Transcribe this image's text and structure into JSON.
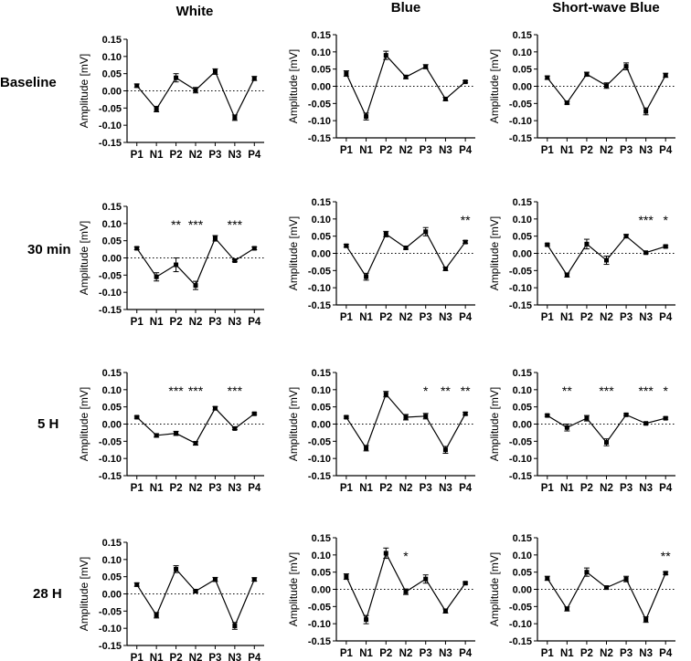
{
  "figure": {
    "columns": [
      "White",
      "Blue",
      "Short-wave Blue"
    ],
    "rows": [
      "Baseline",
      "30 min",
      "5 H",
      "28 H"
    ]
  },
  "chart_data": {
    "type": "line",
    "categories": [
      "P1",
      "N1",
      "P2",
      "N2",
      "P3",
      "N3",
      "P4"
    ],
    "ylabel": "Amplitude [mV]",
    "ylim": [
      -0.15,
      0.15
    ],
    "yticks": [
      "0.15",
      "0.10",
      "0.05",
      "0.00",
      "-0.05",
      "-0.10",
      "-0.15"
    ],
    "reference_line": {
      "y": 0,
      "style": "dotted"
    },
    "panels": [
      {
        "column": "White",
        "row": "Baseline",
        "values": [
          0.015,
          -0.053,
          0.038,
          0.002,
          0.056,
          -0.078,
          0.036
        ],
        "errors": [
          0.005,
          0.008,
          0.012,
          0.008,
          0.008,
          0.008,
          0.006
        ],
        "significance": [
          "",
          "",
          "",
          "",
          "",
          "",
          ""
        ]
      },
      {
        "column": "Blue",
        "row": "Baseline",
        "values": [
          0.037,
          -0.088,
          0.09,
          0.027,
          0.057,
          -0.037,
          0.013
        ],
        "errors": [
          0.008,
          0.01,
          0.012,
          0.005,
          0.006,
          0.005,
          0.003
        ],
        "significance": [
          "",
          "",
          "",
          "",
          "",
          "",
          ""
        ]
      },
      {
        "column": "Short-wave Blue",
        "row": "Baseline",
        "values": [
          0.025,
          -0.048,
          0.035,
          0.002,
          0.058,
          -0.073,
          0.032
        ],
        "errors": [
          0.005,
          0.004,
          0.006,
          0.008,
          0.01,
          0.01,
          0.006
        ],
        "significance": [
          "",
          "",
          "",
          "",
          "",
          "",
          ""
        ]
      },
      {
        "column": "White",
        "row": "30 min",
        "values": [
          0.028,
          -0.055,
          -0.02,
          -0.08,
          0.057,
          -0.008,
          0.028
        ],
        "errors": [
          0.004,
          0.012,
          0.02,
          0.012,
          0.008,
          0.003,
          0.004
        ],
        "significance": [
          "",
          "",
          "**",
          "***",
          "",
          "***",
          ""
        ]
      },
      {
        "column": "Blue",
        "row": "30 min",
        "values": [
          0.022,
          -0.068,
          0.056,
          0.016,
          0.063,
          -0.045,
          0.033
        ],
        "errors": [
          0.004,
          0.01,
          0.008,
          0.004,
          0.012,
          0.005,
          0.004
        ],
        "significance": [
          "",
          "",
          "",
          "",
          "",
          "",
          "**"
        ]
      },
      {
        "column": "Short-wave Blue",
        "row": "30 min",
        "values": [
          0.025,
          -0.063,
          0.027,
          -0.02,
          0.05,
          0.002,
          0.02
        ],
        "errors": [
          0.003,
          0.006,
          0.014,
          0.012,
          0.005,
          0.003,
          0.003
        ],
        "significance": [
          "",
          "",
          "",
          "",
          "",
          "***",
          "*"
        ]
      },
      {
        "column": "White",
        "row": "5 H",
        "values": [
          0.02,
          -0.033,
          -0.027,
          -0.056,
          0.046,
          -0.013,
          0.03
        ],
        "errors": [
          0.003,
          0.005,
          0.006,
          0.005,
          0.005,
          0.003,
          0.003
        ],
        "significance": [
          "",
          "",
          "***",
          "***",
          "",
          "***",
          ""
        ]
      },
      {
        "column": "Blue",
        "row": "5 H",
        "values": [
          0.02,
          -0.07,
          0.087,
          0.02,
          0.023,
          -0.075,
          0.03
        ],
        "errors": [
          0.003,
          0.008,
          0.008,
          0.008,
          0.008,
          0.01,
          0.004
        ],
        "significance": [
          "",
          "",
          "",
          "",
          "*",
          "**",
          "**"
        ]
      },
      {
        "column": "Short-wave Blue",
        "row": "5 H",
        "values": [
          0.025,
          -0.01,
          0.017,
          -0.053,
          0.027,
          0.002,
          0.017
        ],
        "errors": [
          0.003,
          0.01,
          0.008,
          0.01,
          0.003,
          0.003,
          0.003
        ],
        "significance": [
          "",
          "**",
          "",
          "***",
          "",
          "***",
          "*"
        ]
      },
      {
        "column": "White",
        "row": "28 H",
        "values": [
          0.027,
          -0.062,
          0.072,
          0.008,
          0.042,
          -0.093,
          0.042
        ],
        "errors": [
          0.005,
          0.008,
          0.01,
          0.003,
          0.006,
          0.01,
          0.005
        ],
        "significance": [
          "",
          "",
          "",
          "",
          "",
          "",
          ""
        ]
      },
      {
        "column": "Blue",
        "row": "28 H",
        "values": [
          0.037,
          -0.088,
          0.105,
          -0.007,
          0.03,
          -0.063,
          0.018
        ],
        "errors": [
          0.008,
          0.012,
          0.015,
          0.008,
          0.012,
          0.006,
          0.003
        ],
        "significance": [
          "",
          "",
          "",
          "*",
          "",
          "",
          ""
        ]
      },
      {
        "column": "Short-wave Blue",
        "row": "28 H",
        "values": [
          0.032,
          -0.057,
          0.05,
          0.005,
          0.03,
          -0.088,
          0.047
        ],
        "errors": [
          0.006,
          0.006,
          0.012,
          0.005,
          0.008,
          0.008,
          0.004
        ],
        "significance": [
          "",
          "",
          "",
          "",
          "",
          "",
          "**"
        ]
      }
    ]
  }
}
